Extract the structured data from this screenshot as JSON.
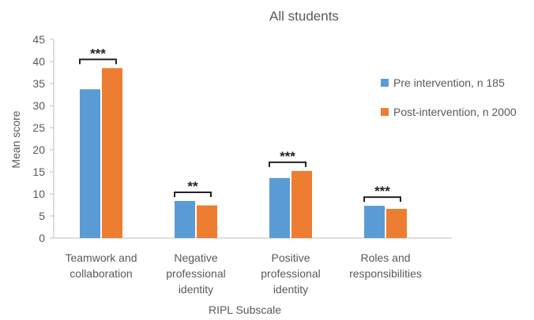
{
  "chart_data": {
    "type": "bar",
    "title": "All students",
    "xlabel": "RIPL Subscale",
    "ylabel": "Mean score",
    "ylim": [
      0,
      45
    ],
    "yticks": [
      0,
      5,
      10,
      15,
      20,
      25,
      30,
      35,
      40,
      45
    ],
    "grid": false,
    "legend_position": "right",
    "categories": [
      [
        "Teamwork and",
        "collaboration"
      ],
      [
        "Negative",
        "professional",
        "identity"
      ],
      [
        "Positive",
        "professional",
        "identity"
      ],
      [
        "Roles and",
        "responsibilities"
      ]
    ],
    "series": [
      {
        "name": "Pre intervention, n 185",
        "color": "#5B9BD5",
        "values": [
          33.7,
          8.4,
          13.6,
          7.3
        ]
      },
      {
        "name": "Post-intervention, n 2000",
        "color": "#ED7D31",
        "values": [
          38.5,
          7.4,
          15.2,
          6.6
        ]
      }
    ],
    "significance": [
      "***",
      "**",
      "***",
      "***"
    ]
  }
}
